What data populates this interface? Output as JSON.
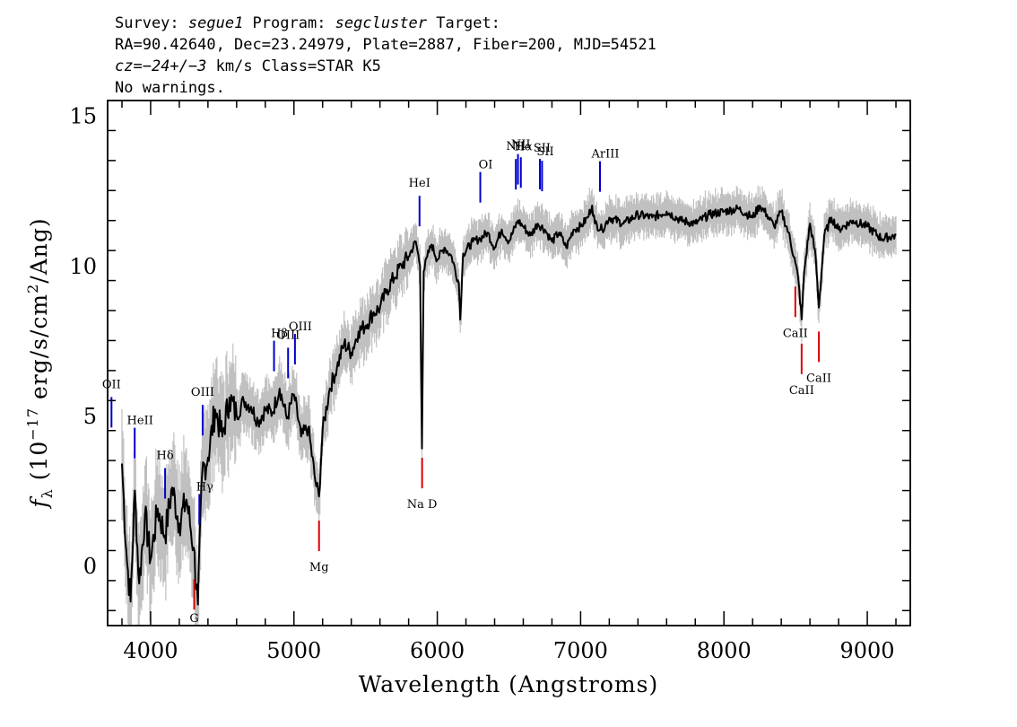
{
  "header": {
    "line1": {
      "a": "Survey: ",
      "b": "segue1",
      "c": " Program: ",
      "d": "segcluster",
      "e": " Target:"
    },
    "line2": "RA=90.42640, Dec=23.24979, Plate=2887, Fiber=200, MJD=54521",
    "line3": {
      "a": "cz=",
      "b": "−24+/−3",
      "c": " km/s Class=STAR K5"
    },
    "line4": "No warnings."
  },
  "chart_data": {
    "type": "line",
    "title": "",
    "xlabel": "Wavelength (Angstroms)",
    "ylabel_parts": {
      "f": "f",
      "sub": "λ",
      "pre": " (10",
      "exp1": "−17",
      "mid": " erg/s/cm",
      "exp2": "2",
      "post": "/Ang)"
    },
    "xlim": [
      3700,
      9300
    ],
    "ylim": [
      -2,
      15.5
    ],
    "xticks": [
      4000,
      5000,
      6000,
      7000,
      8000,
      9000
    ],
    "xtick_labels": [
      "4000",
      "5000",
      "6000",
      "7000",
      "8000",
      "9000"
    ],
    "yticks": [
      0,
      5,
      10,
      15
    ],
    "ytick_labels": [
      "0",
      "5",
      "10",
      "15"
    ],
    "colors": {
      "flux": "#000000",
      "error": "#c0c0c0",
      "emission": "#0000cc",
      "absorption": "#dd0000"
    },
    "series": [
      {
        "role": "flux",
        "x": [
          3800,
          3830,
          3860,
          3890,
          3920,
          3960,
          4000,
          4050,
          4100,
          4150,
          4200,
          4250,
          4300,
          4330,
          4360,
          4400,
          4450,
          4500,
          4550,
          4600,
          4650,
          4700,
          4750,
          4800,
          4850,
          4900,
          4950,
          5000,
          5050,
          5100,
          5150,
          5175,
          5200,
          5250,
          5300,
          5350,
          5400,
          5450,
          5500,
          5550,
          5600,
          5650,
          5700,
          5750,
          5800,
          5850,
          5880,
          5893,
          5905,
          5930,
          5960,
          6000,
          6050,
          6100,
          6150,
          6160,
          6180,
          6250,
          6300,
          6350,
          6400,
          6450,
          6500,
          6563,
          6600,
          6650,
          6700,
          6750,
          6800,
          6850,
          6900,
          6950,
          7000,
          7050,
          7080,
          7100,
          7150,
          7200,
          7300,
          7400,
          7500,
          7600,
          7700,
          7800,
          7900,
          8000,
          8100,
          8200,
          8250,
          8300,
          8350,
          8400,
          8450,
          8498,
          8520,
          8542,
          8560,
          8600,
          8640,
          8662,
          8700,
          8750,
          8800,
          8900,
          9000,
          9100,
          9200
        ],
        "values": [
          3.4,
          0.5,
          -1.2,
          2.5,
          -0.6,
          1.7,
          0.2,
          1.9,
          1.0,
          2.6,
          1.4,
          2.2,
          0.6,
          -1.3,
          3.1,
          3.6,
          5.2,
          4.3,
          5.6,
          5.0,
          5.5,
          5.3,
          4.8,
          5.2,
          5.1,
          5.9,
          4.9,
          5.7,
          4.3,
          4.6,
          2.8,
          2.3,
          4.5,
          5.9,
          6.6,
          7.4,
          7.1,
          7.8,
          8.0,
          8.4,
          8.6,
          9.2,
          9.6,
          10.0,
          10.3,
          10.8,
          10.0,
          3.9,
          9.8,
          10.3,
          10.7,
          10.2,
          10.6,
          10.3,
          9.4,
          8.2,
          10.4,
          10.8,
          10.9,
          11.1,
          10.6,
          11.2,
          10.8,
          11.5,
          11.3,
          11.0,
          11.4,
          11.2,
          10.8,
          11.1,
          10.6,
          11.2,
          11.3,
          11.6,
          12.0,
          11.4,
          11.2,
          11.6,
          11.4,
          11.7,
          11.6,
          11.8,
          11.5,
          11.4,
          11.7,
          11.8,
          11.9,
          11.6,
          12.0,
          11.7,
          11.3,
          11.8,
          11.1,
          10.1,
          9.5,
          8.2,
          9.8,
          11.4,
          10.3,
          8.6,
          11.0,
          11.6,
          11.2,
          11.5,
          11.3,
          10.9,
          11.0
        ]
      }
    ],
    "emission_lines": [
      {
        "label": "OII",
        "x": 3727
      },
      {
        "label": "HeII",
        "x": 3889
      },
      {
        "label": "Hδ",
        "x": 4101
      },
      {
        "label": "Hγ",
        "x": 4340
      },
      {
        "label": "OIII",
        "x": 4363
      },
      {
        "label": "Hβ",
        "x": 4861
      },
      {
        "label": "OIII",
        "x": 4959
      },
      {
        "label": "OIII",
        "x": 5007
      },
      {
        "label": "HeI",
        "x": 5876
      },
      {
        "label": "OI",
        "x": 6300
      },
      {
        "label": "NII",
        "x": 6548
      },
      {
        "label": "Hα",
        "x": 6563
      },
      {
        "label": "NII",
        "x": 6583
      },
      {
        "label": "SII",
        "x": 6716
      },
      {
        "label": "SII",
        "x": 6731
      },
      {
        "label": "ArIII",
        "x": 7135
      }
    ],
    "absorption_lines": [
      {
        "label": "G",
        "x": 4304
      },
      {
        "label": "Mg",
        "x": 5175
      },
      {
        "label": "Na D",
        "x": 5894
      },
      {
        "label": "CaII",
        "x": 8498
      },
      {
        "label": "CaII",
        "x": 8542
      },
      {
        "label": "CaII",
        "x": 8662
      }
    ],
    "grid": false,
    "legend": "none"
  }
}
